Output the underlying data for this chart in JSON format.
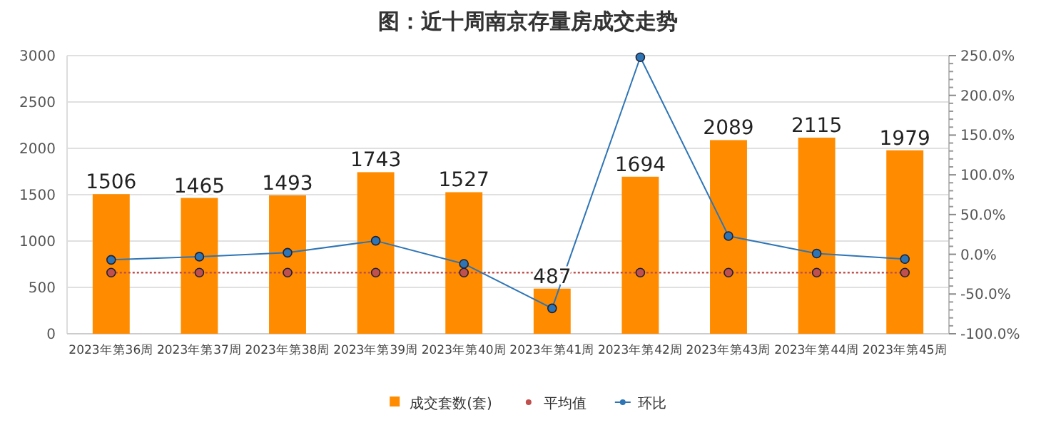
{
  "chart_data": {
    "type": "bar",
    "title": "图：近十周南京存量房成交走势",
    "categories": [
      "2023年第36周",
      "2023年第37周",
      "2023年第38周",
      "2023年第39周",
      "2023年第40周",
      "2023年第41周",
      "2023年第42周",
      "2023年第43周",
      "2023年第44周",
      "2023年第45周"
    ],
    "series": [
      {
        "name": "成交套数(套)",
        "color": "#ff8c00",
        "values": [
          1506,
          1465,
          1493,
          1743,
          1527,
          487,
          1694,
          2089,
          2115,
          1979
        ],
        "value_labels": [
          "1506",
          "1465",
          "1493",
          "1743",
          "1527",
          "487",
          "1694",
          "2089",
          "2115",
          "1979"
        ]
      },
      {
        "name": "平均值",
        "type": "line",
        "color": "#c0504d",
        "marker": "circle",
        "line_style": "dotted",
        "values": [
          660,
          660,
          660,
          660,
          660,
          660,
          660,
          660,
          660,
          660
        ]
      },
      {
        "name": "环比",
        "type": "line",
        "axis": "y2",
        "color": "#2e75b6",
        "marker": "circle",
        "line_style": "solid",
        "values": [
          -7,
          -3,
          2,
          17,
          -12,
          -68,
          248,
          23,
          1,
          -6
        ]
      }
    ],
    "ylim": [
      0,
      3000
    ],
    "yticks": [
      0,
      500,
      1000,
      1500,
      2000,
      2500,
      3000
    ],
    "y2lim": [
      -100,
      250
    ],
    "y2ticks": [
      {
        "value": -100,
        "label": "-100.0%"
      },
      {
        "value": -50,
        "label": "-50.0%"
      },
      {
        "value": 0,
        "label": "0.0%"
      },
      {
        "value": 50,
        "label": "50.0%"
      },
      {
        "value": 100,
        "label": "100.0%"
      },
      {
        "value": 150,
        "label": "150.0%"
      },
      {
        "value": 200,
        "label": "200.0%"
      },
      {
        "value": 250,
        "label": "250.0%"
      }
    ],
    "grid": "y",
    "legend": "bottom"
  }
}
